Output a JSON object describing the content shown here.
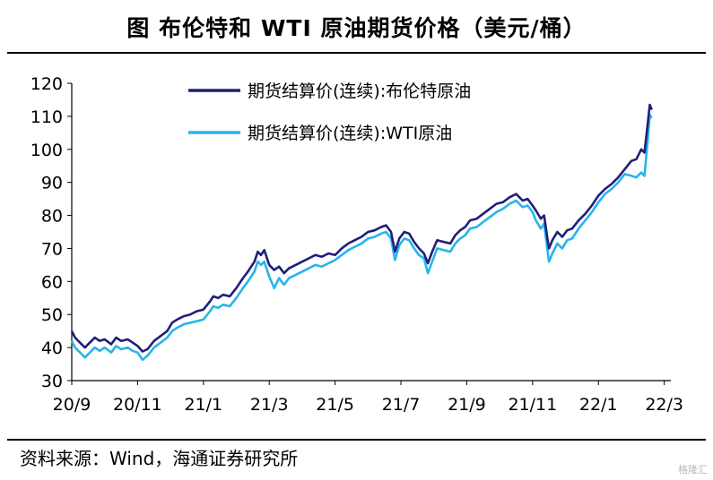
{
  "title": "图  布伦特和 WTI 原油期货价格（美元/桶）",
  "source": "资料来源：Wind，海通证券研究所",
  "watermark": "格隆汇",
  "colors": {
    "brent": "#1f1f7a",
    "wti": "#26b5ea",
    "axis": "#000000",
    "rule": "#000000"
  },
  "chart_data": {
    "type": "line",
    "title": "布伦特和 WTI 原油期货价格（美元/桶）",
    "xlabel": "",
    "ylabel": "",
    "ylim": [
      30,
      120
    ],
    "yticks": [
      "30",
      "40",
      "50",
      "60",
      "70",
      "80",
      "90",
      "100",
      "110",
      "120"
    ],
    "xticks": [
      "20/9",
      "20/11",
      "21/1",
      "21/3",
      "21/5",
      "21/7",
      "21/9",
      "21/11",
      "22/1",
      "22/3"
    ],
    "xlim": [
      0,
      18.2
    ],
    "grid": false,
    "legend": "top-left",
    "series": [
      {
        "name": "期货结算价(连续):布伦特原油",
        "color": "#1f1f7a",
        "points": [
          [
            0.0,
            45.0
          ],
          [
            0.1,
            43.0
          ],
          [
            0.25,
            41.5
          ],
          [
            0.4,
            40.0
          ],
          [
            0.55,
            41.5
          ],
          [
            0.7,
            43.0
          ],
          [
            0.85,
            42.0
          ],
          [
            1.0,
            42.5
          ],
          [
            1.2,
            41.0
          ],
          [
            1.35,
            43.0
          ],
          [
            1.5,
            42.0
          ],
          [
            1.7,
            42.5
          ],
          [
            1.85,
            41.5
          ],
          [
            2.0,
            40.5
          ],
          [
            2.15,
            38.8
          ],
          [
            2.3,
            39.5
          ],
          [
            2.5,
            42.0
          ],
          [
            2.7,
            43.5
          ],
          [
            2.9,
            45.0
          ],
          [
            3.05,
            47.5
          ],
          [
            3.2,
            48.5
          ],
          [
            3.4,
            49.5
          ],
          [
            3.6,
            50.0
          ],
          [
            3.8,
            51.0
          ],
          [
            4.0,
            51.5
          ],
          [
            4.2,
            54.0
          ],
          [
            4.3,
            55.5
          ],
          [
            4.45,
            55.0
          ],
          [
            4.6,
            56.0
          ],
          [
            4.8,
            55.5
          ],
          [
            5.0,
            58.0
          ],
          [
            5.2,
            61.0
          ],
          [
            5.35,
            63.0
          ],
          [
            5.55,
            66.0
          ],
          [
            5.65,
            69.0
          ],
          [
            5.75,
            68.0
          ],
          [
            5.85,
            69.5
          ],
          [
            6.0,
            65.0
          ],
          [
            6.15,
            63.5
          ],
          [
            6.3,
            64.5
          ],
          [
            6.45,
            62.5
          ],
          [
            6.6,
            64.0
          ],
          [
            6.8,
            65.0
          ],
          [
            7.0,
            66.0
          ],
          [
            7.2,
            67.0
          ],
          [
            7.4,
            68.0
          ],
          [
            7.6,
            67.5
          ],
          [
            7.8,
            68.5
          ],
          [
            8.0,
            68.0
          ],
          [
            8.2,
            70.0
          ],
          [
            8.4,
            71.5
          ],
          [
            8.6,
            72.5
          ],
          [
            8.8,
            73.5
          ],
          [
            9.0,
            75.0
          ],
          [
            9.2,
            75.5
          ],
          [
            9.4,
            76.5
          ],
          [
            9.55,
            77.0
          ],
          [
            9.7,
            75.0
          ],
          [
            9.82,
            69.0
          ],
          [
            9.95,
            73.0
          ],
          [
            10.1,
            75.0
          ],
          [
            10.25,
            74.5
          ],
          [
            10.4,
            72.0
          ],
          [
            10.55,
            70.0
          ],
          [
            10.7,
            68.5
          ],
          [
            10.82,
            65.5
          ],
          [
            10.95,
            69.0
          ],
          [
            11.1,
            72.5
          ],
          [
            11.3,
            72.0
          ],
          [
            11.5,
            71.5
          ],
          [
            11.65,
            74.0
          ],
          [
            11.8,
            75.5
          ],
          [
            11.95,
            76.5
          ],
          [
            12.1,
            78.5
          ],
          [
            12.3,
            79.0
          ],
          [
            12.5,
            80.5
          ],
          [
            12.7,
            82.0
          ],
          [
            12.9,
            83.5
          ],
          [
            13.1,
            84.0
          ],
          [
            13.3,
            85.5
          ],
          [
            13.5,
            86.5
          ],
          [
            13.7,
            84.5
          ],
          [
            13.85,
            85.0
          ],
          [
            14.0,
            83.0
          ],
          [
            14.1,
            81.5
          ],
          [
            14.25,
            79.0
          ],
          [
            14.35,
            80.0
          ],
          [
            14.45,
            73.0
          ],
          [
            14.5,
            70.0
          ],
          [
            14.6,
            72.5
          ],
          [
            14.75,
            75.0
          ],
          [
            14.9,
            73.5
          ],
          [
            15.05,
            75.5
          ],
          [
            15.2,
            76.0
          ],
          [
            15.4,
            78.5
          ],
          [
            15.6,
            80.5
          ],
          [
            15.8,
            83.0
          ],
          [
            16.0,
            86.0
          ],
          [
            16.2,
            88.0
          ],
          [
            16.4,
            89.5
          ],
          [
            16.6,
            91.5
          ],
          [
            16.8,
            94.0
          ],
          [
            17.0,
            96.5
          ],
          [
            17.15,
            97.0
          ],
          [
            17.3,
            100.0
          ],
          [
            17.4,
            99.0
          ],
          [
            17.5,
            108.0
          ],
          [
            17.56,
            113.5
          ],
          [
            17.62,
            112.0
          ]
        ]
      },
      {
        "name": "期货结算价(连续):WTI原油",
        "color": "#26b5ea",
        "points": [
          [
            0.0,
            42.0
          ],
          [
            0.1,
            40.0
          ],
          [
            0.25,
            38.5
          ],
          [
            0.4,
            37.0
          ],
          [
            0.55,
            38.5
          ],
          [
            0.7,
            40.0
          ],
          [
            0.85,
            39.0
          ],
          [
            1.0,
            40.0
          ],
          [
            1.2,
            38.5
          ],
          [
            1.35,
            40.5
          ],
          [
            1.5,
            39.5
          ],
          [
            1.7,
            40.0
          ],
          [
            1.85,
            39.0
          ],
          [
            2.0,
            38.5
          ],
          [
            2.15,
            36.3
          ],
          [
            2.3,
            37.5
          ],
          [
            2.5,
            40.0
          ],
          [
            2.7,
            41.5
          ],
          [
            2.9,
            43.0
          ],
          [
            3.05,
            45.0
          ],
          [
            3.2,
            46.0
          ],
          [
            3.4,
            47.0
          ],
          [
            3.6,
            47.5
          ],
          [
            3.8,
            48.0
          ],
          [
            4.0,
            48.5
          ],
          [
            4.2,
            51.0
          ],
          [
            4.3,
            52.5
          ],
          [
            4.45,
            52.0
          ],
          [
            4.6,
            53.0
          ],
          [
            4.8,
            52.5
          ],
          [
            5.0,
            55.0
          ],
          [
            5.2,
            58.0
          ],
          [
            5.35,
            60.0
          ],
          [
            5.55,
            63.0
          ],
          [
            5.65,
            66.0
          ],
          [
            5.75,
            65.0
          ],
          [
            5.85,
            66.0
          ],
          [
            6.0,
            61.5
          ],
          [
            6.15,
            58.0
          ],
          [
            6.3,
            61.0
          ],
          [
            6.45,
            59.0
          ],
          [
            6.6,
            61.0
          ],
          [
            6.8,
            62.0
          ],
          [
            7.0,
            63.0
          ],
          [
            7.2,
            64.0
          ],
          [
            7.4,
            65.0
          ],
          [
            7.6,
            64.5
          ],
          [
            7.8,
            65.5
          ],
          [
            8.0,
            66.5
          ],
          [
            8.2,
            68.0
          ],
          [
            8.4,
            69.5
          ],
          [
            8.6,
            70.5
          ],
          [
            8.8,
            71.5
          ],
          [
            9.0,
            73.0
          ],
          [
            9.2,
            73.5
          ],
          [
            9.4,
            74.5
          ],
          [
            9.55,
            75.0
          ],
          [
            9.7,
            73.0
          ],
          [
            9.82,
            66.5
          ],
          [
            9.95,
            71.0
          ],
          [
            10.1,
            73.0
          ],
          [
            10.25,
            72.5
          ],
          [
            10.4,
            70.0
          ],
          [
            10.55,
            68.0
          ],
          [
            10.7,
            67.0
          ],
          [
            10.82,
            62.5
          ],
          [
            10.95,
            66.0
          ],
          [
            11.1,
            70.0
          ],
          [
            11.3,
            69.5
          ],
          [
            11.5,
            69.0
          ],
          [
            11.65,
            71.5
          ],
          [
            11.8,
            73.0
          ],
          [
            11.95,
            74.0
          ],
          [
            12.1,
            76.0
          ],
          [
            12.3,
            76.5
          ],
          [
            12.5,
            78.0
          ],
          [
            12.7,
            79.5
          ],
          [
            12.9,
            81.0
          ],
          [
            13.1,
            82.0
          ],
          [
            13.3,
            83.5
          ],
          [
            13.5,
            84.5
          ],
          [
            13.7,
            82.5
          ],
          [
            13.85,
            83.0
          ],
          [
            14.0,
            81.0
          ],
          [
            14.1,
            78.5
          ],
          [
            14.25,
            76.0
          ],
          [
            14.35,
            77.5
          ],
          [
            14.45,
            69.5
          ],
          [
            14.5,
            66.0
          ],
          [
            14.6,
            68.5
          ],
          [
            14.75,
            71.5
          ],
          [
            14.9,
            70.0
          ],
          [
            15.05,
            72.5
          ],
          [
            15.2,
            73.0
          ],
          [
            15.4,
            76.0
          ],
          [
            15.6,
            78.5
          ],
          [
            15.8,
            81.0
          ],
          [
            16.0,
            84.0
          ],
          [
            16.2,
            86.5
          ],
          [
            16.4,
            88.0
          ],
          [
            16.6,
            90.0
          ],
          [
            16.8,
            92.5
          ],
          [
            17.0,
            92.0
          ],
          [
            17.15,
            91.5
          ],
          [
            17.3,
            93.0
          ],
          [
            17.4,
            92.0
          ],
          [
            17.5,
            103.0
          ],
          [
            17.56,
            110.5
          ],
          [
            17.62,
            109.5
          ]
        ]
      }
    ]
  }
}
